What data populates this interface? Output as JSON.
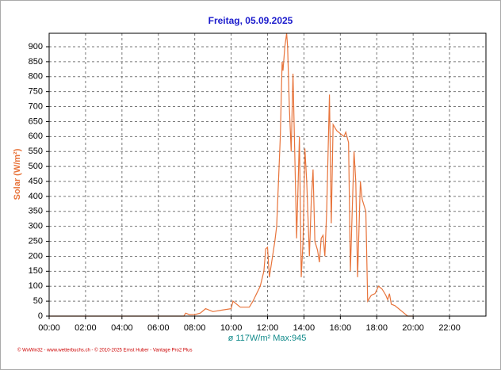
{
  "chart_data": {
    "type": "line",
    "title": "Freitag, 05.09.2025",
    "y_label": "Solar (W/m²)",
    "summary": "ø 117W/m²  Max:945",
    "footer": "© WxWin32 - www.wetterbuchs.ch - © 2010-2025 Ernst Huber - Vantage Pro2 Plus",
    "x": [
      0,
      7.4,
      7.5,
      7.7,
      8.0,
      8.3,
      8.6,
      9.0,
      9.5,
      10.0,
      10.1,
      10.5,
      11.0,
      11.2,
      11.6,
      11.8,
      11.9,
      12.0,
      12.1,
      12.2,
      12.4,
      12.5,
      12.6,
      12.7,
      12.8,
      12.85,
      12.95,
      13.05,
      13.1,
      13.2,
      13.3,
      13.4,
      13.6,
      13.75,
      13.85,
      13.95,
      14.05,
      14.15,
      14.3,
      14.4,
      14.5,
      14.6,
      14.75,
      14.85,
      14.95,
      15.05,
      15.15,
      15.25,
      15.4,
      15.5,
      15.6,
      15.8,
      16.0,
      16.2,
      16.3,
      16.45,
      16.55,
      16.75,
      16.85,
      16.95,
      17.1,
      17.2,
      17.4,
      17.5,
      17.7,
      17.9,
      18.1,
      18.3,
      18.5,
      18.6,
      18.7,
      18.8,
      19.0,
      19.3,
      19.5,
      19.7,
      20.0
    ],
    "series": [
      {
        "name": "Solar",
        "color": "#e8743b",
        "values": [
          0,
          0,
          10,
          5,
          5,
          10,
          25,
          15,
          20,
          25,
          50,
          30,
          30,
          50,
          100,
          150,
          225,
          230,
          130,
          170,
          250,
          300,
          450,
          600,
          850,
          820,
          900,
          945,
          900,
          700,
          550,
          810,
          260,
          600,
          130,
          250,
          560,
          450,
          200,
          380,
          490,
          250,
          220,
          180,
          260,
          270,
          200,
          350,
          740,
          310,
          640,
          620,
          610,
          600,
          615,
          580,
          150,
          550,
          450,
          130,
          450,
          390,
          350,
          50,
          70,
          75,
          100,
          90,
          70,
          55,
          75,
          40,
          35,
          20,
          10,
          0,
          0
        ]
      }
    ],
    "xlim": [
      0,
      24
    ],
    "xticks": [
      {
        "value": 0,
        "label": "00:00"
      },
      {
        "value": 2,
        "label": "02:00"
      },
      {
        "value": 4,
        "label": "04:00"
      },
      {
        "value": 6,
        "label": "06:00"
      },
      {
        "value": 8,
        "label": "08:00"
      },
      {
        "value": 10,
        "label": "10:00"
      },
      {
        "value": 12,
        "label": "12:00"
      },
      {
        "value": 14,
        "label": "14:00"
      },
      {
        "value": 16,
        "label": "16:00"
      },
      {
        "value": 18,
        "label": "18:00"
      },
      {
        "value": 20,
        "label": "20:00"
      },
      {
        "value": 22,
        "label": "22:00"
      }
    ],
    "ylim": [
      0,
      945
    ],
    "yticks": [
      0,
      50,
      100,
      150,
      200,
      250,
      300,
      350,
      400,
      450,
      500,
      550,
      600,
      650,
      700,
      750,
      800,
      850,
      900
    ],
    "grid": true
  }
}
